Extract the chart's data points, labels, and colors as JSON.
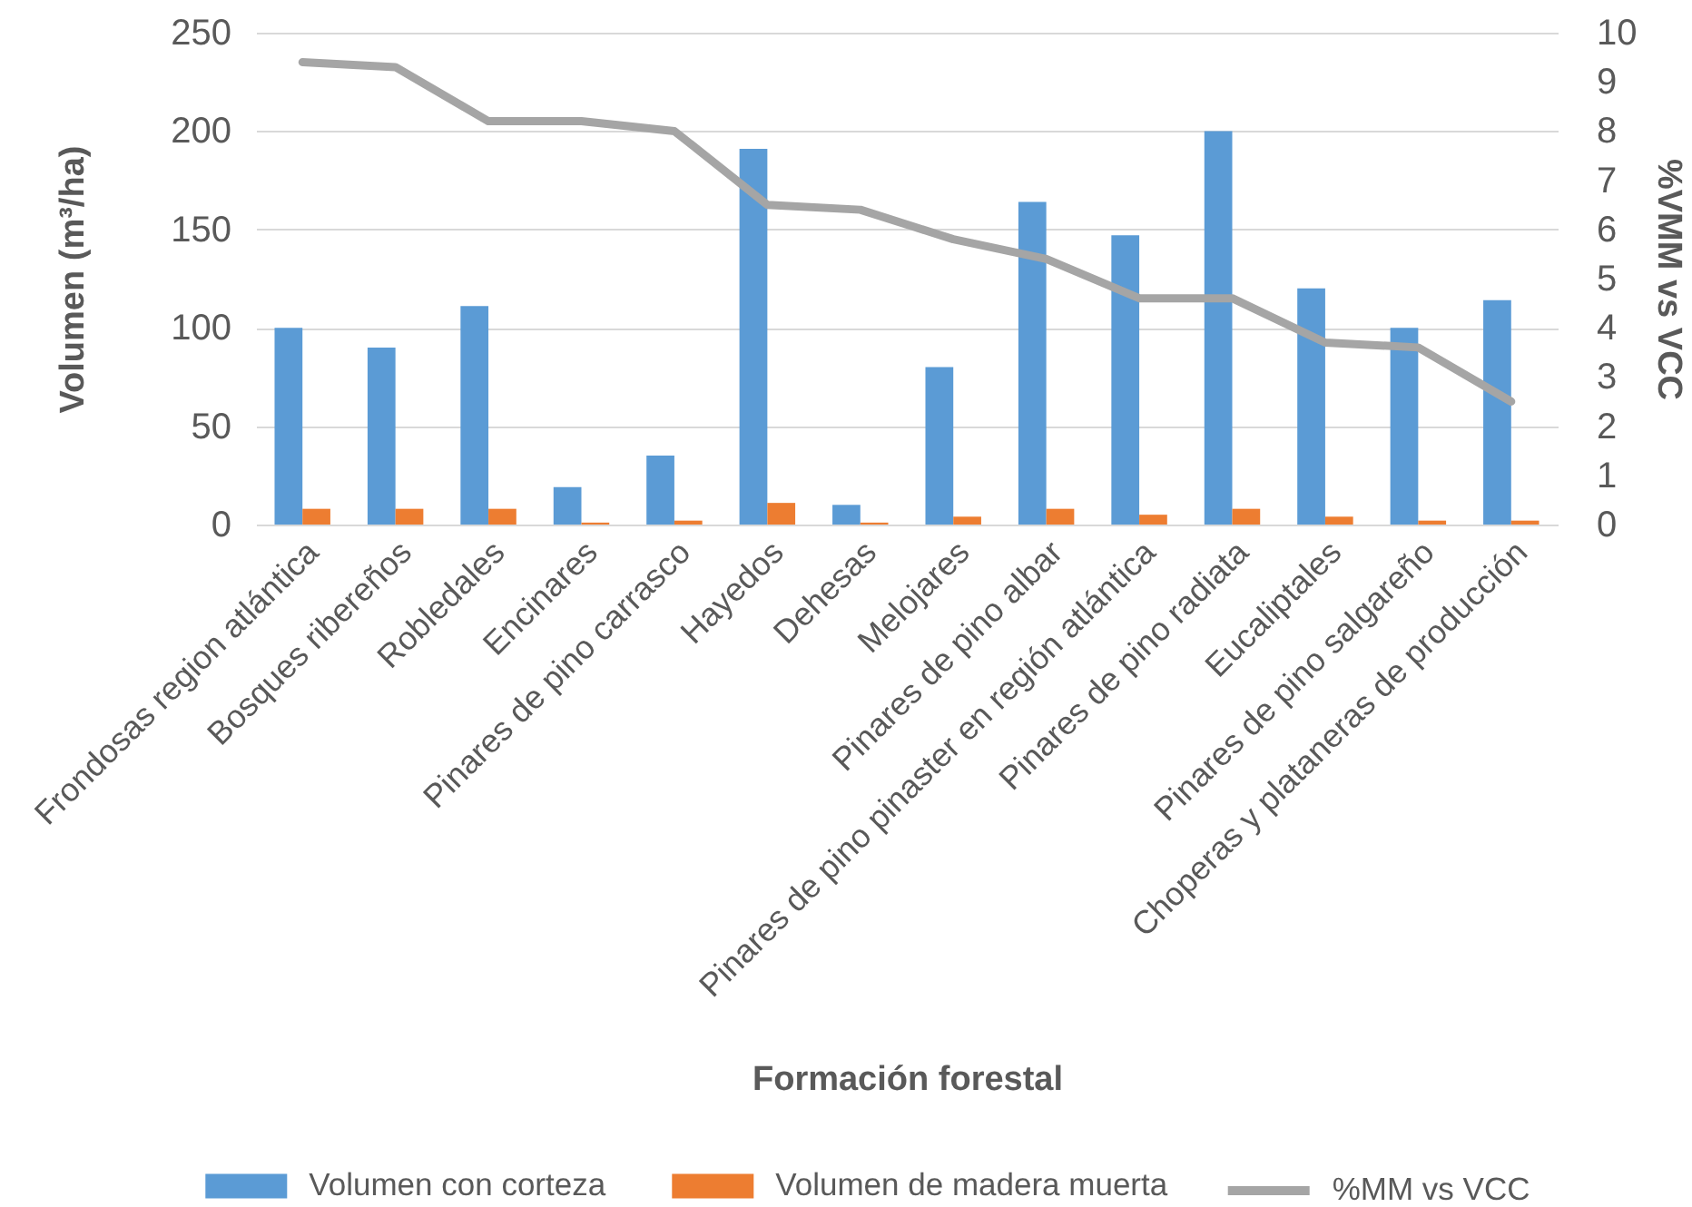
{
  "chart_data": {
    "type": "bar",
    "xlabel": "Formación forestal",
    "ylabel": "Volumen (m³/ha)",
    "y2label": "%VMM vs VCC",
    "categories": [
      "Frondosas region atlántica",
      "Bosques ribereños",
      "Robledales",
      "Encinares",
      "Pinares de pino carrasco",
      "Hayedos",
      "Dehesas",
      "Melojares",
      "Pinares de pino albar",
      "Pinares de pino pinaster en región atlántica",
      "Pinares de pino radiata",
      "Eucaliptales",
      "Pinares de pino salgareño",
      "Choperas y plataneras de producción"
    ],
    "series": [
      {
        "name": "Volumen con corteza",
        "color": "#5b9bd5",
        "values": [
          100,
          90,
          111,
          19,
          35,
          191,
          10,
          80,
          164,
          147,
          200,
          120,
          100,
          114
        ]
      },
      {
        "name": "Volumen de madera muerta",
        "color": "#ed7d31",
        "values": [
          8,
          8,
          8,
          1,
          2,
          11,
          1,
          4,
          8,
          5,
          8,
          4,
          2,
          2
        ]
      },
      {
        "name": "%MM vs VCC",
        "color": "#a5a5a5",
        "type": "line",
        "axis": "y2",
        "values": [
          9.4,
          9.3,
          8.2,
          8.2,
          8.0,
          6.5,
          6.4,
          5.8,
          5.4,
          4.6,
          4.6,
          3.7,
          3.6,
          2.5
        ]
      }
    ],
    "ylim": [
      0,
      250
    ],
    "yticks": [
      0,
      50,
      100,
      150,
      200,
      250
    ],
    "y2lim": [
      0,
      10
    ],
    "y2ticks": [
      0,
      1,
      2,
      3,
      4,
      5,
      6,
      7,
      8,
      9,
      10
    ],
    "grid": "y",
    "legend": "bottom"
  }
}
